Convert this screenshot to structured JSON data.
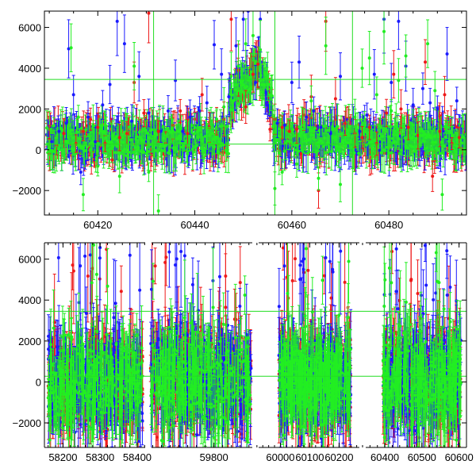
{
  "colors": {
    "series_blue": "#1a1aff",
    "series_red": "#ee1a1a",
    "series_green": "#22ee22",
    "reference_line": "#22dd22",
    "axis": "#000000"
  },
  "chart_data": [
    {
      "type": "scatter",
      "panel": "top",
      "title": "",
      "xlabel": "",
      "ylabel": "",
      "xlim": [
        60409,
        60496
      ],
      "ylim": [
        -3200,
        6800
      ],
      "x_ticks": [
        60420,
        60440,
        60460,
        60480
      ],
      "y_ticks": [
        -2000,
        0,
        2000,
        4000,
        6000
      ],
      "error_bars": true,
      "grid": false,
      "legend": "none",
      "reference_lines": [
        {
          "orientation": "horizontal",
          "y": 3450
        },
        {
          "orientation": "horizontal",
          "y": 280
        },
        {
          "orientation": "vertical",
          "x": 60431.5
        },
        {
          "orientation": "vertical",
          "x": 60456.5
        },
        {
          "orientation": "vertical",
          "x": 60472.5
        }
      ],
      "series": [
        {
          "color": "blue",
          "points": [
            [
              60410.5,
              400
            ],
            [
              60412.0,
              900
            ],
            [
              60413.5,
              1300
            ],
            [
              60414.0,
              4950
            ],
            [
              60415.0,
              2700
            ],
            [
              60416.5,
              -1100
            ],
            [
              60418.0,
              1600
            ],
            [
              60419.5,
              400
            ],
            [
              60421.0,
              2200
            ],
            [
              60422.5,
              3200
            ],
            [
              60424.0,
              6300
            ],
            [
              60425.5,
              5200
            ],
            [
              60427.0,
              1400
            ],
            [
              60428.5,
              3600
            ],
            [
              60430.5,
              1800
            ],
            [
              60433.0,
              900
            ],
            [
              60434.5,
              1900
            ],
            [
              60436.0,
              3400
            ],
            [
              60437.5,
              900
            ],
            [
              60439.0,
              1600
            ],
            [
              60441.0,
              1900
            ],
            [
              60442.5,
              2300
            ],
            [
              60444.0,
              5150
            ],
            [
              60445.5,
              3700
            ],
            [
              60447.0,
              2600
            ],
            [
              60448.5,
              5100
            ],
            [
              60450.0,
              6400
            ],
            [
              60451.0,
              6800
            ],
            [
              60452.5,
              3300
            ],
            [
              60453.5,
              6400
            ],
            [
              60455.0,
              2200
            ],
            [
              60457.0,
              1300
            ],
            [
              60458.5,
              1200
            ],
            [
              60460.0,
              3300
            ],
            [
              60461.5,
              4300
            ],
            [
              60463.0,
              1600
            ],
            [
              60464.5,
              1900
            ],
            [
              60466.0,
              1100
            ],
            [
              60468.0,
              800
            ],
            [
              60470.0,
              3600
            ],
            [
              60472.5,
              1500
            ],
            [
              60474.0,
              900
            ],
            [
              60475.5,
              1700
            ],
            [
              60477.0,
              3700
            ],
            [
              60479.0,
              6400
            ],
            [
              60480.5,
              3300
            ],
            [
              60482.0,
              6300
            ],
            [
              60483.5,
              4100
            ],
            [
              60485.0,
              2200
            ],
            [
              60487.0,
              3000
            ],
            [
              60488.5,
              2300
            ],
            [
              60490.0,
              2000
            ],
            [
              60492.0,
              4700
            ],
            [
              60494.0,
              2400
            ]
          ]
        },
        {
          "color": "red",
          "points": [
            [
              60410.0,
              500
            ],
            [
              60411.5,
              200
            ],
            [
              60413.0,
              800
            ],
            [
              60415.5,
              300
            ],
            [
              60417.0,
              900
            ],
            [
              60418.5,
              1500
            ],
            [
              60420.0,
              1100
            ],
            [
              60421.5,
              300
            ],
            [
              60423.0,
              -500
            ],
            [
              60424.5,
              600
            ],
            [
              60426.0,
              800
            ],
            [
              60427.5,
              3300
            ],
            [
              60429.5,
              1800
            ],
            [
              60430.5,
              6700
            ],
            [
              60432.5,
              900
            ],
            [
              60434.0,
              300
            ],
            [
              60435.5,
              1200
            ],
            [
              60437.0,
              1900
            ],
            [
              60438.5,
              800
            ],
            [
              60440.0,
              1500
            ],
            [
              60441.5,
              2700
            ],
            [
              60443.0,
              1100
            ],
            [
              60444.5,
              1400
            ],
            [
              60446.0,
              1500
            ],
            [
              60447.5,
              6400
            ],
            [
              60449.0,
              3900
            ],
            [
              60450.5,
              2100
            ],
            [
              60452.0,
              3700
            ],
            [
              60453.0,
              4200
            ],
            [
              60455.5,
              1000
            ],
            [
              60456.5,
              1500
            ],
            [
              60458.0,
              1100
            ],
            [
              60459.5,
              900
            ],
            [
              60461.0,
              1000
            ],
            [
              60462.5,
              1700
            ],
            [
              60464.0,
              2600
            ],
            [
              60465.5,
              -2000
            ],
            [
              60467.0,
              6300
            ],
            [
              60469.0,
              2500
            ],
            [
              60471.0,
              1300
            ],
            [
              60473.0,
              800
            ],
            [
              60474.5,
              600
            ],
            [
              60476.0,
              1100
            ],
            [
              60477.5,
              300
            ],
            [
              60479.5,
              1800
            ],
            [
              60481.0,
              3700
            ],
            [
              60482.5,
              2000
            ],
            [
              60484.0,
              1100
            ],
            [
              60486.0,
              700
            ],
            [
              60487.5,
              4300
            ],
            [
              60489.0,
              -1300
            ],
            [
              60490.5,
              900
            ],
            [
              60491.5,
              2700
            ],
            [
              60493.0,
              300
            ],
            [
              60494.5,
              600
            ]
          ]
        },
        {
          "color": "green",
          "points": [
            [
              60410.0,
              100
            ],
            [
              60411.5,
              600
            ],
            [
              60413.0,
              -300
            ],
            [
              60414.5,
              5000
            ],
            [
              60416.0,
              1600
            ],
            [
              60417.0,
              -2200
            ],
            [
              60418.5,
              300
            ],
            [
              60420.0,
              -800
            ],
            [
              60421.5,
              1200
            ],
            [
              60423.0,
              700
            ],
            [
              60424.5,
              -1300
            ],
            [
              60426.0,
              -300
            ],
            [
              60427.5,
              4100
            ],
            [
              60429.0,
              500
            ],
            [
              60430.5,
              -1100
            ],
            [
              60432.5,
              -3000
            ],
            [
              60434.0,
              200
            ],
            [
              60435.5,
              900
            ],
            [
              60437.0,
              600
            ],
            [
              60438.5,
              -200
            ],
            [
              60440.0,
              1100
            ],
            [
              60441.5,
              100
            ],
            [
              60443.0,
              700
            ],
            [
              60444.5,
              1500
            ],
            [
              60446.0,
              2100
            ],
            [
              60447.5,
              3600
            ],
            [
              60449.0,
              4100
            ],
            [
              60450.5,
              5200
            ],
            [
              60452.0,
              5600
            ],
            [
              60453.5,
              4900
            ],
            [
              60455.0,
              3600
            ],
            [
              60456.5,
              -1900
            ],
            [
              60458.0,
              -1100
            ],
            [
              60459.5,
              400
            ],
            [
              60461.0,
              -700
            ],
            [
              60462.5,
              1200
            ],
            [
              60464.0,
              2400
            ],
            [
              60465.5,
              -1400
            ],
            [
              60467.0,
              5100
            ],
            [
              60468.5,
              600
            ],
            [
              60470.0,
              -1700
            ],
            [
              60471.5,
              900
            ],
            [
              60473.0,
              1600
            ],
            [
              60474.5,
              4000
            ],
            [
              60476.0,
              4500
            ],
            [
              60477.5,
              2700
            ],
            [
              60479.0,
              5800
            ],
            [
              60480.5,
              1900
            ],
            [
              60482.0,
              3400
            ],
            [
              60483.5,
              4600
            ],
            [
              60485.0,
              1200
            ],
            [
              60486.5,
              700
            ],
            [
              60488.0,
              5200
            ],
            [
              60489.5,
              2900
            ],
            [
              60491.0,
              -2200
            ],
            [
              60492.5,
              900
            ],
            [
              60494.0,
              500
            ]
          ]
        }
      ]
    },
    {
      "type": "scatter",
      "panel": "bottom",
      "title": "",
      "xlabel": "",
      "ylabel": "",
      "ylim": [
        -3200,
        6800
      ],
      "x_axis_segments": [
        {
          "xlim": [
            58150,
            58430
          ],
          "x_ticks": [
            58200,
            58300,
            58400
          ]
        },
        {
          "xlim": [
            59650,
            59895
          ],
          "x_ticks": [
            59800
          ]
        },
        {
          "xlim": [
            59915,
            60280
          ],
          "x_ticks": [
            60000,
            60100,
            60200
          ]
        },
        {
          "xlim": [
            60340,
            60620
          ],
          "x_ticks": [
            60400,
            60500,
            60600
          ]
        }
      ],
      "y_ticks": [
        -2000,
        0,
        2000,
        4000,
        6000
      ],
      "error_bars": true,
      "grid": false,
      "legend": "none",
      "reference_lines": [
        {
          "orientation": "horizontal",
          "y": 3450
        },
        {
          "orientation": "horizontal",
          "y": 280
        }
      ],
      "data_ranges": [
        {
          "x": [
            58160,
            58415
          ],
          "center": 0,
          "spread": 1500
        },
        {
          "x": [
            59655,
            59885
          ],
          "center": 100,
          "spread": 1600
        },
        {
          "x": [
            59995,
            60240
          ],
          "center": 50,
          "spread": 1400
        },
        {
          "x": [
            60395,
            60605
          ],
          "center": 100,
          "spread": 1600
        }
      ]
    }
  ]
}
